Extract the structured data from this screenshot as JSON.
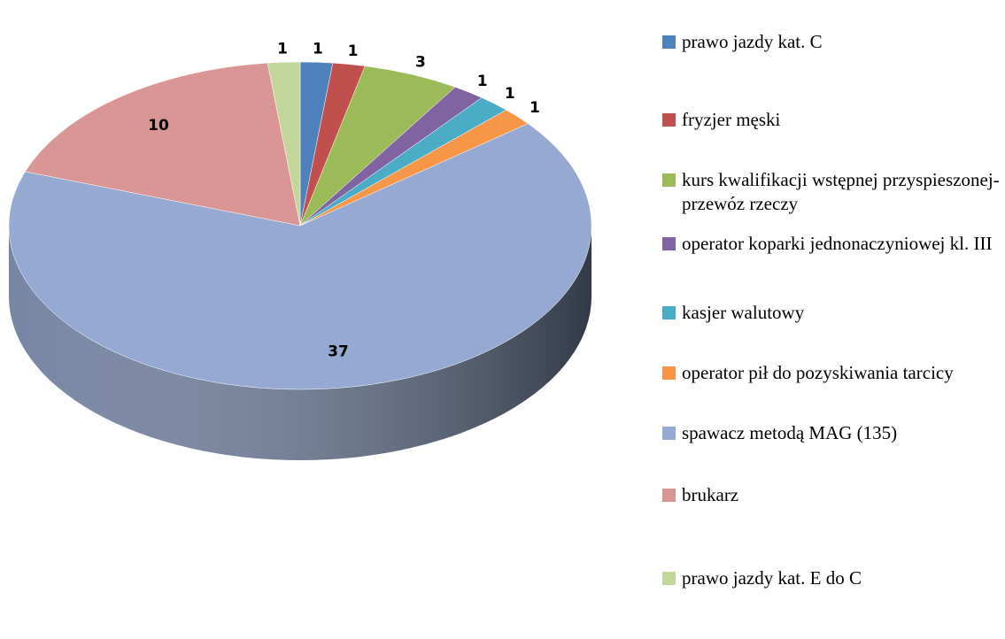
{
  "chart_data": {
    "type": "pie3d",
    "categories": [
      "prawo jazdy kat. C",
      "fryzjer męski",
      "kurs kwalifikacji wstępnej przyspieszonej- przewóz rzeczy",
      "operator koparki jednonaczyniowej kl. III",
      "kasjer walutowy",
      "operator pił do pozyskiwania tarcicy",
      "spawacz metodą MAG (135)",
      "brukarz",
      "prawo jazdy kat. E do C"
    ],
    "values": [
      1,
      1,
      3,
      1,
      1,
      1,
      37,
      10,
      1
    ],
    "colors": [
      "#4f81bd",
      "#c0504d",
      "#9bbb59",
      "#8064a2",
      "#4bacc6",
      "#f79646",
      "#95a9d3",
      "#d99694",
      "#c3d69b"
    ],
    "legend": "right"
  }
}
